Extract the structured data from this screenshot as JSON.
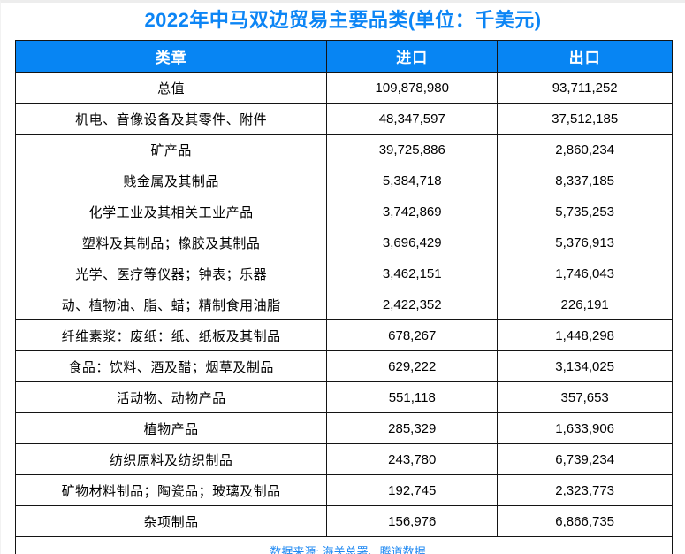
{
  "page": {
    "title": "2022年中马双边贸易主要品类(单位：千美元)",
    "source_note": "数据来源: 海关总署、腾道数据"
  },
  "colors": {
    "title_blue": "#0c85f5",
    "header_bg_blue": "#0785f3",
    "header_text": "#ffffff",
    "source_blue": "#1e88f2",
    "border": "#141414"
  },
  "chart_data": {
    "type": "table",
    "title": "2022年中马双边贸易主要品类(单位：千美元)",
    "columns": [
      "类章",
      "进口",
      "出口"
    ],
    "rows": [
      [
        "总值",
        "109,878,980",
        "93,711,252"
      ],
      [
        "机电、音像设备及其零件、附件",
        "48,347,597",
        "37,512,185"
      ],
      [
        "矿产品",
        "39,725,886",
        "2,860,234"
      ],
      [
        "贱金属及其制品",
        "5,384,718",
        "8,337,185"
      ],
      [
        "化学工业及其相关工业产品",
        "3,742,869",
        "5,735,253"
      ],
      [
        "塑料及其制品；橡胶及其制品",
        "3,696,429",
        "5,376,913"
      ],
      [
        "光学、医疗等仪器；钟表；乐器",
        "3,462,151",
        "1,746,043"
      ],
      [
        "动、植物油、脂、蜡；精制食用油脂",
        "2,422,352",
        "226,191"
      ],
      [
        "纤维素浆：废纸：纸、纸板及其制品",
        "678,267",
        "1,448,298"
      ],
      [
        "食品：饮料、酒及醋；烟草及制品",
        "629,222",
        "3,134,025"
      ],
      [
        "活动物、动物产品",
        "551,118",
        "357,653"
      ],
      [
        "植物产品",
        "285,329",
        "1,633,906"
      ],
      [
        "纺织原料及纺织制品",
        "243,780",
        "6,739,234"
      ],
      [
        "矿物材料制品；陶瓷品；玻璃及制品",
        "192,745",
        "2,323,773"
      ],
      [
        "杂项制品",
        "156,976",
        "6,866,735"
      ]
    ],
    "source": "数据来源: 海关总署、腾道数据",
    "layout_hints": {
      "header_style": "blue background, white bold centered text",
      "cell_alignment": "center",
      "source_row": "merged across all columns, left aligned, blue text",
      "grid": "on"
    }
  }
}
